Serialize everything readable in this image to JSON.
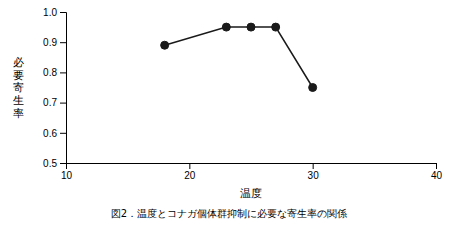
{
  "chart_data": {
    "type": "line",
    "title": "図2．温度とコナガ個体群抑制に必要な寄生率の関係",
    "x_label": "温度",
    "ylabel": "必要寄生率",
    "x": [
      18,
      23,
      25,
      27,
      30
    ],
    "values": [
      0.89,
      0.95,
      0.95,
      0.95,
      0.75
    ],
    "color": "#1a1a1a",
    "marker": "circle",
    "line_style": "solid",
    "xlim": [
      10,
      40
    ],
    "ylim": [
      0.5,
      1.0
    ],
    "xticks": [
      10,
      20,
      30,
      40
    ],
    "yticks": [
      0.5,
      0.6,
      0.7,
      0.8,
      0.9,
      {
        "value": 1.0,
        "label": "1.0"
      }
    ]
  }
}
